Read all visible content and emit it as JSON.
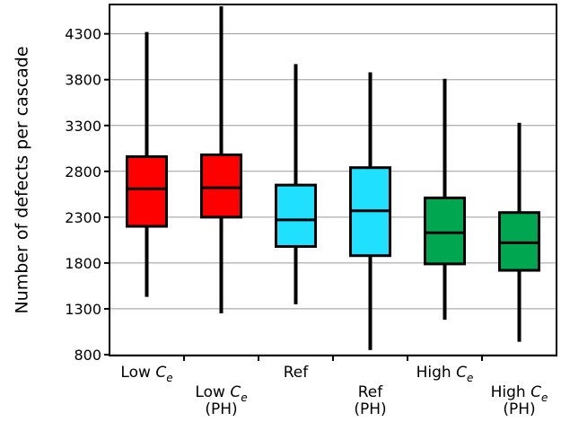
{
  "chart_data": {
    "type": "boxplot",
    "ylabel": "Number of defects per cascade",
    "ylim": [
      790,
      4620
    ],
    "yticks": [
      800,
      1300,
      1800,
      2300,
      2800,
      3300,
      3800,
      4300
    ],
    "grid": true,
    "categories": [
      {
        "line1": "Low ",
        "sym": "C",
        "sub": "e",
        "line2": ""
      },
      {
        "line1": "Low ",
        "sym": "C",
        "sub": "e",
        "line2": "(PH)"
      },
      {
        "line1": "Ref",
        "sym": "",
        "sub": "",
        "line2": ""
      },
      {
        "line1": "Ref",
        "sym": "",
        "sub": "",
        "line2": "(PH)"
      },
      {
        "line1": "High ",
        "sym": "C",
        "sub": "e",
        "line2": ""
      },
      {
        "line1": "High ",
        "sym": "C",
        "sub": "e",
        "line2": "(PH)"
      }
    ],
    "boxes": [
      {
        "min": 1430,
        "q1": 2200,
        "median": 2610,
        "q3": 2960,
        "max": 4320,
        "color": "#ff0000"
      },
      {
        "min": 1250,
        "q1": 2300,
        "median": 2620,
        "q3": 2980,
        "max": 4600,
        "color": "#ff0000"
      },
      {
        "min": 1350,
        "q1": 1980,
        "median": 2270,
        "q3": 2650,
        "max": 3970,
        "color": "#1fe0ff"
      },
      {
        "min": 850,
        "q1": 1880,
        "median": 2370,
        "q3": 2840,
        "max": 3880,
        "color": "#1fe0ff"
      },
      {
        "min": 1180,
        "q1": 1790,
        "median": 2130,
        "q3": 2510,
        "max": 3810,
        "color": "#00a650"
      },
      {
        "min": 940,
        "q1": 1720,
        "median": 2020,
        "q3": 2350,
        "max": 3330,
        "color": "#00a650"
      }
    ]
  }
}
